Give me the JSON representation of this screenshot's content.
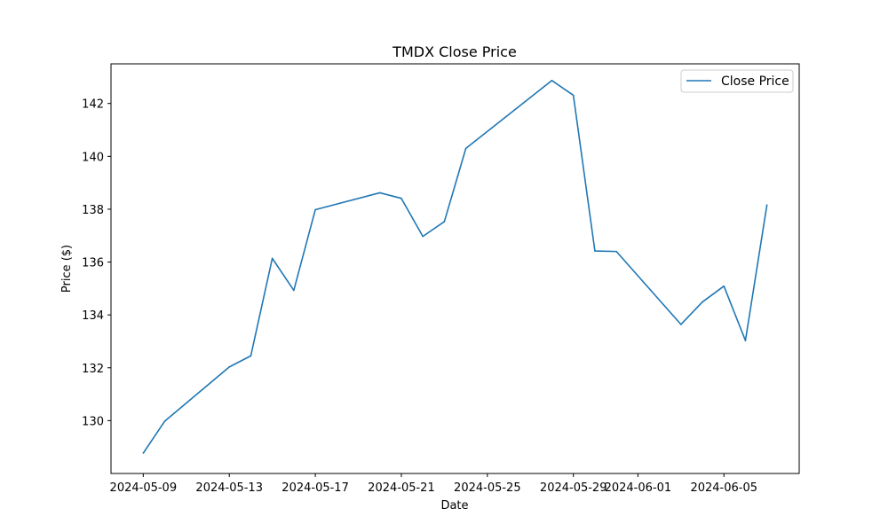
{
  "chart_data": {
    "type": "line",
    "title": "TMDX Close Price",
    "xlabel": "Date",
    "ylabel": "Price ($)",
    "x": [
      "2024-05-09",
      "2024-05-10",
      "2024-05-13",
      "2024-05-14",
      "2024-05-15",
      "2024-05-16",
      "2024-05-17",
      "2024-05-20",
      "2024-05-21",
      "2024-05-22",
      "2024-05-23",
      "2024-05-24",
      "2024-05-28",
      "2024-05-29",
      "2024-05-30",
      "2024-05-31",
      "2024-06-03",
      "2024-06-04",
      "2024-06-05",
      "2024-06-06",
      "2024-06-07"
    ],
    "series": [
      {
        "name": "Close Price",
        "color": "#1f77b4",
        "values": [
          128.77,
          129.98,
          132.03,
          132.45,
          136.14,
          134.93,
          137.98,
          138.62,
          138.41,
          136.97,
          137.53,
          140.3,
          142.87,
          142.31,
          136.42,
          136.4,
          133.64,
          134.49,
          135.09,
          133.03,
          138.16
        ]
      }
    ],
    "xticks": [
      "2024-05-09",
      "2024-05-13",
      "2024-05-17",
      "2024-05-21",
      "2024-05-25",
      "2024-05-29",
      "2024-06-01",
      "2024-06-05"
    ],
    "yticks": [
      130,
      132,
      134,
      136,
      138,
      140,
      142
    ],
    "xlim": [
      "2024-05-07T12:00",
      "2024-06-08T12:00"
    ],
    "ylim": [
      128.0,
      143.5
    ],
    "legend": "upper right",
    "grid": false
  }
}
